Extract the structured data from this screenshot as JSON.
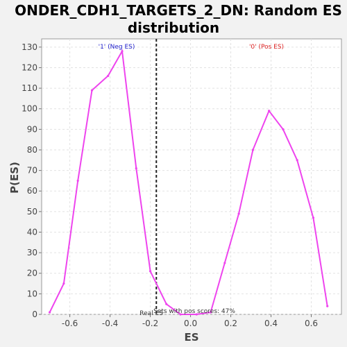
{
  "chart_data": {
    "type": "line",
    "title_line1": "ONDER_CDH1_TARGETS_2_DN: Random ES",
    "title_line2": "distribution",
    "xlabel": "ES",
    "ylabel": "P(ES)",
    "xlim": [
      -0.74,
      0.75
    ],
    "ylim": [
      0,
      134
    ],
    "x_ticks": [
      -0.6,
      -0.4,
      -0.2,
      0.0,
      0.2,
      0.4,
      0.6
    ],
    "x_tick_labels": [
      "-0.6",
      "-0.4",
      "-0.2",
      "0.0",
      "0.2",
      "0.4",
      "0.6"
    ],
    "y_ticks": [
      0,
      10,
      20,
      30,
      40,
      50,
      60,
      70,
      80,
      90,
      100,
      110,
      120,
      130
    ],
    "y_tick_labels": [
      "0",
      "10",
      "20",
      "30",
      "40",
      "50",
      "60",
      "70",
      "80",
      "90",
      "100",
      "110",
      "120",
      "130"
    ],
    "grid": true,
    "series": [
      {
        "color": "#ee44ee",
        "x": [
          -0.7,
          -0.63,
          -0.56,
          -0.49,
          -0.41,
          -0.34,
          -0.27,
          -0.2,
          -0.12,
          -0.05,
          0.03,
          0.1,
          0.17,
          0.24,
          0.31,
          0.39,
          0.46,
          0.53,
          0.61,
          0.68
        ],
        "y": [
          1,
          15,
          65,
          109,
          116,
          128,
          71,
          21,
          5,
          0,
          0,
          1,
          25,
          49,
          80,
          99,
          90,
          75,
          47,
          4
        ]
      }
    ],
    "vline_x": -0.17,
    "annotations": {
      "neg_label": "'1' (Neg ES)",
      "neg_color": "#2222cc",
      "pos_label": "'0' (Pos ES)",
      "pos_color": "#dd2222",
      "pos_scores": "Sets with pos scores: 47%",
      "real_es": "Real ES"
    }
  }
}
